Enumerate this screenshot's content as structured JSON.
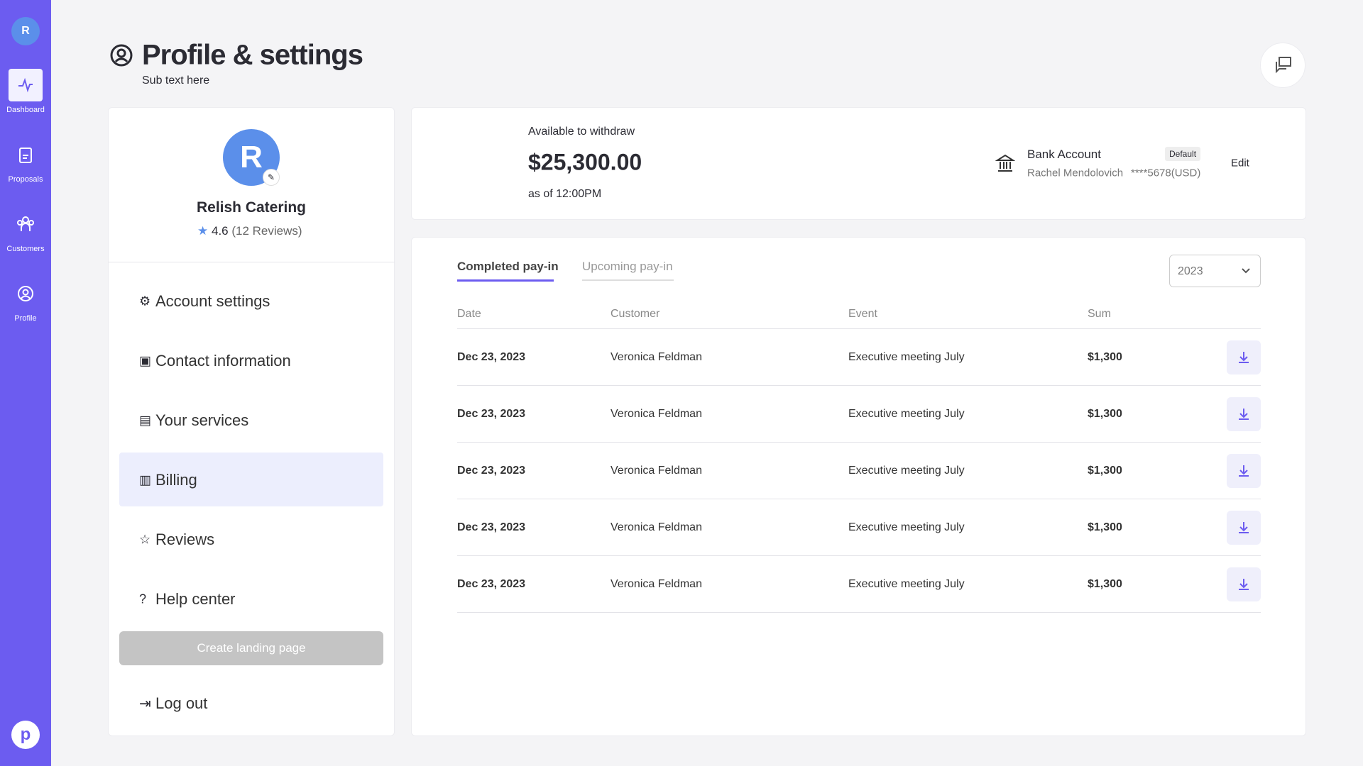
{
  "sidebar": {
    "nav": [
      {
        "label": "Dashboard"
      },
      {
        "label": "Proposals"
      },
      {
        "label": "Customers"
      },
      {
        "label": "Profile"
      }
    ]
  },
  "header": {
    "title": "Profile & settings",
    "subtitle": "Sub text here"
  },
  "profile": {
    "name": "Relish Catering",
    "rating": "4.6",
    "reviews": "(12 Reviews)"
  },
  "menu": {
    "items": [
      "Account  settings",
      "Contact information",
      "Your services",
      "Billing",
      "Reviews",
      "Help center"
    ],
    "button": "Create landing page",
    "logout": "Log out"
  },
  "balance": {
    "label": "Available to withdraw",
    "amount": "$25,300.00",
    "as_of": "as of 12:00PM"
  },
  "bank": {
    "title": "Bank Account",
    "badge": "Default",
    "holder": "Rachel Mendolovich",
    "number": "****5678(USD)",
    "edit": "Edit"
  },
  "tabs": [
    "Completed pay-in",
    "Upcoming pay-in"
  ],
  "year": "2023",
  "table": {
    "headers": [
      "Date",
      "Customer",
      "Event",
      "Sum"
    ],
    "rows": [
      [
        "Dec 23, 2023",
        "Veronica Feldman",
        "Executive meeting July",
        "$1,300"
      ],
      [
        "Dec 23, 2023",
        "Veronica Feldman",
        "Executive meeting July",
        "$1,300"
      ],
      [
        "Dec 23, 2023",
        "Veronica Feldman",
        "Executive meeting July",
        "$1,300"
      ],
      [
        "Dec 23, 2023",
        "Veronica Feldman",
        "Executive meeting July",
        "$1,300"
      ],
      [
        "Dec 23, 2023",
        "Veronica Feldman",
        "Executive meeting July",
        "$1,300"
      ]
    ]
  }
}
